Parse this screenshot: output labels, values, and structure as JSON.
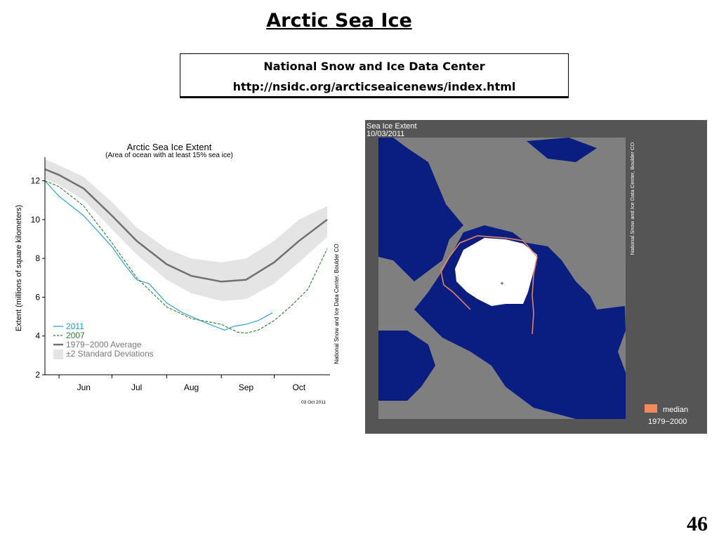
{
  "slide": {
    "title": "Arctic Sea Ice",
    "source_line1": "National Snow and Ice Data Center",
    "source_line2": "http://nsidc.org/arcticseaicenews/index.html",
    "page_number": "46"
  },
  "chart_data": {
    "type": "line",
    "title": "Arctic Sea Ice Extent",
    "subtitle": "(Area of ocean with at least 15% sea ice)",
    "ylabel": "Extent (millions of square kilometers)",
    "xlabel": "",
    "ylim": [
      2,
      13
    ],
    "yticks": [
      2,
      4,
      6,
      8,
      10,
      12
    ],
    "xlim": [
      "2011-05-24",
      "2011-10-31"
    ],
    "x_tick_labels": [
      "Jun",
      "Jul",
      "Aug",
      "Sep",
      "Oct"
    ],
    "x_month_boundaries": [
      "2011-06-01",
      "2011-07-01",
      "2011-08-01",
      "2011-09-01",
      "2011-10-01"
    ],
    "x_tick_label_positions": [
      "2011-06-15",
      "2011-07-15",
      "2011-08-15",
      "2011-09-15",
      "2011-10-15"
    ],
    "date_stamp": "03 Oct 2011",
    "credit": "National Snow and Ice Data Center, Boulder CO",
    "grid": false,
    "legend_placement": "bottom-left",
    "series": [
      {
        "name": "1979−2000 Average",
        "kind": "mean",
        "color": "#707070",
        "x": [
          "2011-05-24",
          "2011-06-01",
          "2011-06-15",
          "2011-07-01",
          "2011-07-15",
          "2011-08-01",
          "2011-08-15",
          "2011-09-01",
          "2011-09-15",
          "2011-10-01",
          "2011-10-15",
          "2011-10-31"
        ],
        "y": [
          12.6,
          12.3,
          11.6,
          10.2,
          8.9,
          7.7,
          7.1,
          6.8,
          6.9,
          7.8,
          8.9,
          10.0
        ]
      },
      {
        "name": "±2 Standard Deviations",
        "kind": "band",
        "color": "#e4e4e4",
        "x": [
          "2011-05-24",
          "2011-06-01",
          "2011-06-15",
          "2011-07-01",
          "2011-07-15",
          "2011-08-01",
          "2011-08-15",
          "2011-09-01",
          "2011-09-15",
          "2011-10-01",
          "2011-10-15",
          "2011-10-31"
        ],
        "y_upper": [
          13.1,
          12.8,
          12.2,
          10.9,
          9.6,
          8.5,
          8.0,
          7.8,
          8.0,
          8.9,
          10.0,
          10.7
        ],
        "y_lower": [
          12.1,
          11.8,
          11.0,
          9.5,
          8.2,
          6.9,
          6.2,
          5.8,
          5.9,
          6.7,
          7.8,
          9.1
        ]
      },
      {
        "name": "2011",
        "kind": "line",
        "color": "#1e9ad6",
        "x": [
          "2011-05-24",
          "2011-06-01",
          "2011-06-15",
          "2011-07-01",
          "2011-07-08",
          "2011-07-15",
          "2011-07-22",
          "2011-08-01",
          "2011-08-10",
          "2011-08-20",
          "2011-08-28",
          "2011-09-03",
          "2011-09-08",
          "2011-09-15",
          "2011-09-22",
          "2011-09-30"
        ],
        "y": [
          12.0,
          11.2,
          10.2,
          8.6,
          7.7,
          6.9,
          6.7,
          5.7,
          5.2,
          4.8,
          4.5,
          4.3,
          4.5,
          4.6,
          4.8,
          5.2
        ]
      },
      {
        "name": "2007",
        "kind": "dashed",
        "color": "#2e7d32",
        "x": [
          "2011-05-24",
          "2011-06-01",
          "2011-06-15",
          "2011-07-01",
          "2011-07-15",
          "2011-08-01",
          "2011-08-15",
          "2011-09-01",
          "2011-09-10",
          "2011-09-15",
          "2011-09-22",
          "2011-10-01",
          "2011-10-10",
          "2011-10-20",
          "2011-10-31"
        ],
        "y": [
          12.0,
          11.7,
          10.7,
          8.8,
          7.0,
          5.5,
          4.9,
          4.6,
          4.2,
          4.15,
          4.3,
          4.8,
          5.5,
          6.4,
          8.5
        ]
      }
    ]
  },
  "map": {
    "title_line1": "Sea Ice Extent",
    "title_line2": "10/03/2011",
    "credit": "National Snow and Ice Data Center, Boulder CO",
    "legend_label": "median",
    "legend_period": "1979−2000",
    "colors": {
      "ocean": "#0a1e82",
      "land": "#7f7f7f",
      "frame": "#555555",
      "ice": "#ffffff",
      "median_line": "#f28a5a"
    }
  }
}
